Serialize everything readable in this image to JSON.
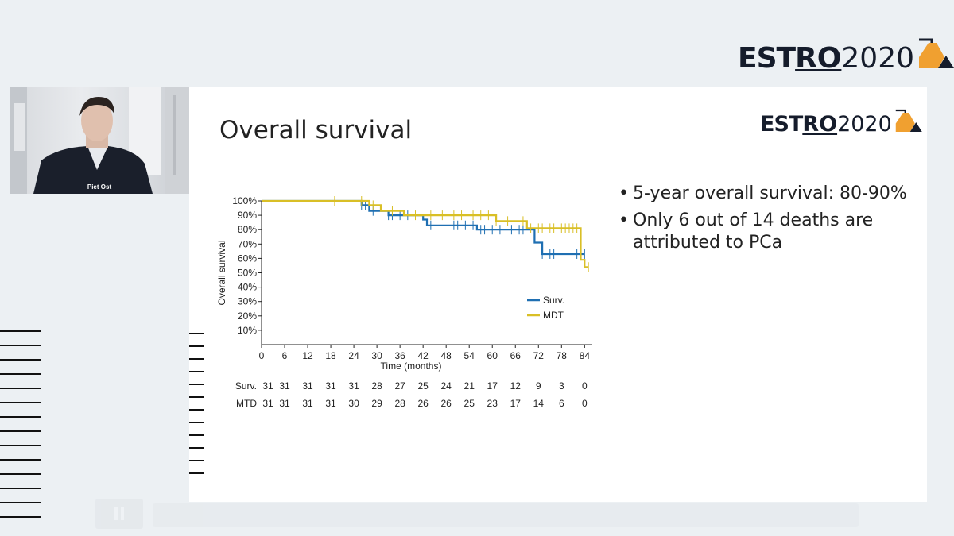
{
  "header": {
    "logo_estr": "EST",
    "logo_ro": "RO",
    "logo_year": "2020"
  },
  "webcam": {
    "speaker_name": "Piet Ost"
  },
  "slide": {
    "title": "Overall survival",
    "logo_estr": "EST",
    "logo_ro": "RO",
    "logo_year": "2020",
    "bullets": [
      "5-year overall survival: 80-90%",
      "Only 6 out of 14 deaths are attributed to PCa"
    ]
  },
  "colors": {
    "surv": "#1f6fb2",
    "mdt": "#d9bf26",
    "logo_orange": "#f0a030",
    "logo_navy": "#151c2b"
  },
  "chart_data": {
    "type": "line",
    "xlabel": "Time (months)",
    "ylabel": "Overall survival",
    "xlim": [
      0,
      86
    ],
    "ylim": [
      0,
      100
    ],
    "x_ticks": [
      0,
      6,
      12,
      18,
      24,
      30,
      36,
      42,
      48,
      54,
      60,
      66,
      72,
      78,
      84
    ],
    "y_ticks": [
      10,
      20,
      30,
      40,
      50,
      60,
      70,
      80,
      90,
      100
    ],
    "y_tick_labels": [
      "10%",
      "20%",
      "30%",
      "40%",
      "50%",
      "60%",
      "70%",
      "80%",
      "90%",
      "100%"
    ],
    "legend": "bottom-right",
    "series": [
      {
        "name": "Surv.",
        "steps": [
          [
            0,
            100
          ],
          [
            26,
            100
          ],
          [
            26,
            97
          ],
          [
            28,
            97
          ],
          [
            28,
            93
          ],
          [
            33,
            93
          ],
          [
            33,
            90
          ],
          [
            42,
            90
          ],
          [
            42,
            87
          ],
          [
            43,
            87
          ],
          [
            43,
            83
          ],
          [
            56,
            83
          ],
          [
            56,
            80
          ],
          [
            71,
            80
          ],
          [
            71,
            71
          ],
          [
            73,
            71
          ],
          [
            73,
            63
          ],
          [
            84,
            63
          ]
        ],
        "censor_x": [
          26,
          27,
          29,
          33,
          34,
          36,
          38,
          44,
          50,
          51,
          53,
          55,
          57,
          58,
          60,
          62,
          65,
          67,
          68,
          73,
          75,
          76,
          82,
          84
        ]
      },
      {
        "name": "MDT",
        "steps": [
          [
            0,
            100
          ],
          [
            28,
            100
          ],
          [
            28,
            97
          ],
          [
            31,
            97
          ],
          [
            31,
            93
          ],
          [
            37,
            93
          ],
          [
            37,
            90
          ],
          [
            61,
            90
          ],
          [
            61,
            86
          ],
          [
            69,
            86
          ],
          [
            69,
            81
          ],
          [
            83,
            81
          ],
          [
            83,
            59
          ],
          [
            84,
            59
          ],
          [
            84,
            54
          ],
          [
            85,
            54
          ]
        ],
        "censor_x": [
          19,
          26,
          29,
          34,
          40,
          44,
          47,
          50,
          52,
          55,
          57,
          59,
          61,
          64,
          68,
          70,
          72,
          73,
          75,
          76,
          78,
          79,
          80,
          81,
          82,
          85
        ]
      }
    ],
    "risk_table": {
      "x": [
        0,
        6,
        12,
        18,
        24,
        30,
        36,
        42,
        48,
        54,
        60,
        66,
        72,
        78,
        84
      ],
      "rows": [
        {
          "label": "Surv.",
          "values": [
            31,
            31,
            31,
            31,
            31,
            28,
            27,
            25,
            24,
            21,
            17,
            12,
            9,
            3,
            0
          ]
        },
        {
          "label": "MTD",
          "values": [
            31,
            31,
            31,
            31,
            30,
            29,
            28,
            26,
            26,
            25,
            23,
            17,
            14,
            6,
            0
          ]
        }
      ]
    }
  }
}
